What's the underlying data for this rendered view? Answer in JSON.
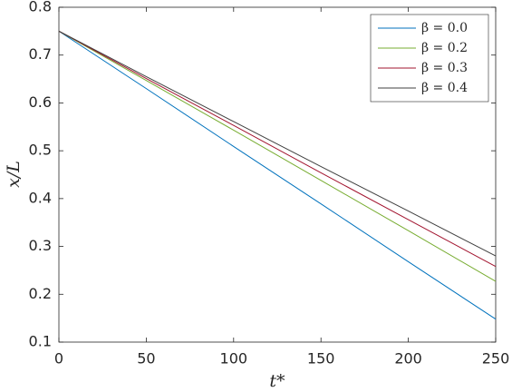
{
  "chart_data": {
    "type": "line",
    "xlabel": "t*",
    "ylabel": "x/L",
    "x": [
      0,
      50,
      100,
      150,
      200,
      250
    ],
    "series": [
      {
        "name": "β = 0.0",
        "color": "#0072bd",
        "values": [
          0.75,
          0.63,
          0.509,
          0.389,
          0.268,
          0.148
        ]
      },
      {
        "name": "β = 0.2",
        "color": "#77ac30",
        "values": [
          0.75,
          0.647,
          0.543,
          0.438,
          0.333,
          0.227
        ]
      },
      {
        "name": "β = 0.3",
        "color": "#a2142f",
        "values": [
          0.75,
          0.651,
          0.553,
          0.454,
          0.356,
          0.258
        ]
      },
      {
        "name": "β = 0.4",
        "color": "#404040",
        "values": [
          0.75,
          0.655,
          0.561,
          0.467,
          0.374,
          0.28
        ]
      }
    ],
    "xlim": [
      0,
      250
    ],
    "xticks": [
      0,
      50,
      100,
      150,
      200,
      250
    ],
    "ylim": [
      0.1,
      0.8
    ],
    "yticks": [
      0.1,
      0.2,
      0.3,
      0.4,
      0.5,
      0.6,
      0.7,
      0.8
    ],
    "legend": "upper right"
  }
}
